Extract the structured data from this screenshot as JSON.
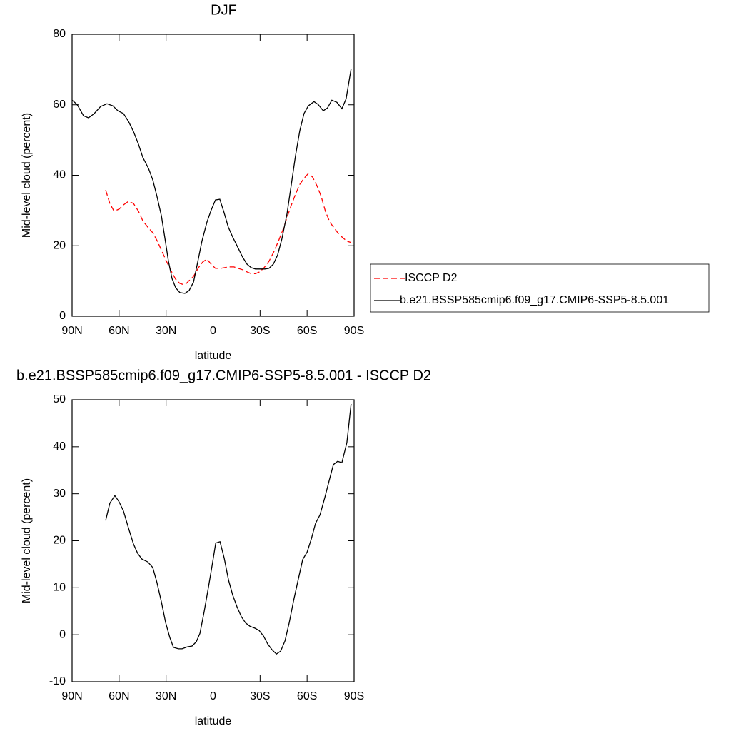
{
  "chart_data": [
    {
      "type": "line",
      "title": "DJF",
      "xlabel": "latitude",
      "ylabel": "Mid-level cloud (percent)",
      "xlim": [
        90,
        -90
      ],
      "xticks": [
        {
          "value": 90,
          "label": "90N"
        },
        {
          "value": 60,
          "label": "60N"
        },
        {
          "value": 30,
          "label": "30N"
        },
        0,
        {
          "value": -30,
          "label": "30S"
        },
        {
          "value": -60,
          "label": "60S"
        },
        {
          "value": -90,
          "label": "90S"
        }
      ],
      "ylim": [
        0,
        80
      ],
      "yticks": [
        0,
        20,
        40,
        60,
        80
      ],
      "legend": "outside-right",
      "series": [
        {
          "name": "ISCCP D2",
          "color": "#ff0000",
          "dash": true,
          "x": [
            68.6,
            65.9,
            63.2,
            60,
            57.2,
            54,
            50.8,
            47.6,
            44.9,
            41.7,
            38.5,
            35.8,
            33,
            30,
            26.7,
            23.9,
            21.2,
            18,
            15.3,
            12.5,
            9.3,
            6.6,
            3.9,
            1.3,
            -1.5,
            -4.7,
            -7.4,
            -10.2,
            -13.3,
            -16,
            -18.8,
            -21.6,
            -24.3,
            -27,
            -29.8,
            -32.6,
            -35.7,
            -38.9,
            -41.7,
            -44.4,
            -47.1,
            -49.8,
            -52.6,
            -55.3,
            -58,
            -60.8,
            -63.5,
            -66.3,
            -69,
            -71.7,
            -74.5,
            -77.2,
            -79.9,
            -82.7,
            -85.4,
            -88.1
          ],
          "values": [
            35.8,
            32,
            29.8,
            30.4,
            31.6,
            32.6,
            32,
            29.8,
            27.1,
            25.3,
            23.7,
            21.5,
            18.8,
            15.8,
            12.8,
            10.5,
            9.3,
            8.9,
            10.1,
            11.3,
            13.8,
            15.4,
            16.2,
            14.8,
            13.6,
            13.6,
            13.8,
            14,
            14,
            13.6,
            13.2,
            12.6,
            12.1,
            12.1,
            12.6,
            13.8,
            15.6,
            18.4,
            21.3,
            24.3,
            27.9,
            31.4,
            34.6,
            37.4,
            39.1,
            40.5,
            39.5,
            37,
            34,
            29.8,
            26.7,
            25.1,
            23.5,
            22.3,
            21.3,
            20.9
          ]
        },
        {
          "name": "b.e21.BSSP585cmip6.f09_g17.CMIP6-SSP5-8.5.001",
          "color": "#000000",
          "dash": false,
          "x": [
            90,
            86.8,
            82.7,
            79.5,
            75.9,
            71.8,
            67.7,
            64,
            60.8,
            57.2,
            54,
            50.8,
            47.6,
            44.9,
            41.2,
            38.5,
            35.8,
            33,
            30.8,
            28.5,
            26.2,
            23.9,
            21.2,
            18,
            15.3,
            12.5,
            9.8,
            7.1,
            3.9,
            1.3,
            -1.5,
            -4.3,
            -7,
            -9.7,
            -12.5,
            -15.7,
            -18.8,
            -21.6,
            -24.3,
            -27,
            -30.3,
            -33,
            -35.7,
            -38.5,
            -41.2,
            -43.9,
            -47.1,
            -49.8,
            -52.6,
            -55.3,
            -58,
            -60.8,
            -64.4,
            -67.1,
            -70.3,
            -73,
            -75.8,
            -79,
            -82.2,
            -84.9,
            -88.1
          ],
          "values": [
            61.3,
            60.1,
            56.9,
            56.3,
            57.5,
            59.5,
            60.3,
            59.7,
            58.3,
            57.5,
            55.3,
            52.4,
            48.8,
            45.1,
            41.9,
            38.7,
            34,
            28.5,
            22.3,
            15.6,
            10.7,
            8.1,
            6.7,
            6.5,
            7.3,
            9.7,
            15.4,
            21.3,
            26.7,
            30,
            33,
            33.2,
            29.4,
            25.3,
            22.5,
            19.6,
            16.8,
            14.8,
            13.8,
            13.4,
            13.4,
            13.4,
            13.6,
            14.8,
            17.4,
            21.9,
            28.9,
            37,
            45.5,
            52.6,
            57.5,
            59.7,
            60.9,
            60.1,
            58.3,
            59.1,
            61.3,
            60.7,
            58.9,
            61.7,
            70.2
          ]
        }
      ]
    },
    {
      "type": "line",
      "title": "b.e21.BSSP585cmip6.f09_g17.CMIP6-SSP5-8.5.001 - ISCCP D2",
      "xlabel": "latitude",
      "ylabel": "Mid-level cloud (percent)",
      "xlim": [
        90,
        -90
      ],
      "xticks": [
        {
          "value": 90,
          "label": "90N"
        },
        {
          "value": 60,
          "label": "60N"
        },
        {
          "value": 30,
          "label": "30N"
        },
        0,
        {
          "value": -30,
          "label": "30S"
        },
        {
          "value": -60,
          "label": "60S"
        },
        {
          "value": -90,
          "label": "90S"
        }
      ],
      "ylim": [
        -10,
        50
      ],
      "yticks": [
        -10,
        0,
        10,
        20,
        30,
        40,
        50
      ],
      "series": [
        {
          "color": "#000000",
          "dash": false,
          "x": [
            68.6,
            65.9,
            62.7,
            60,
            57.2,
            54,
            50.8,
            48.1,
            45.4,
            41.7,
            38.5,
            35.8,
            33,
            30.3,
            27.6,
            25.3,
            22.1,
            19.8,
            16.6,
            13.4,
            10.7,
            8.4,
            5.7,
            2.9,
            0.6,
            -1.7,
            -4.4,
            -7.1,
            -9.9,
            -12.6,
            -15.3,
            -18.1,
            -20.8,
            -23.5,
            -26.7,
            -29.4,
            -32.2,
            -34.9,
            -37.6,
            -40.4,
            -43.1,
            -45.9,
            -48.6,
            -51.4,
            -54.5,
            -57.2,
            -60,
            -62.7,
            -65.4,
            -68.2,
            -71.3,
            -74.1,
            -76.8,
            -79.5,
            -82.2,
            -85.4,
            -88.1
          ],
          "values": [
            24.3,
            28,
            29.6,
            28.3,
            26.3,
            22.7,
            19.3,
            17.3,
            16.1,
            15.5,
            14.3,
            11.1,
            7,
            2.6,
            -0.6,
            -2.7,
            -3,
            -3,
            -2.6,
            -2.4,
            -1.5,
            0.3,
            4.9,
            10.2,
            14.8,
            19.5,
            19.8,
            16.3,
            11.6,
            8.4,
            5.9,
            3.8,
            2.5,
            1.8,
            1.4,
            0.9,
            -0.3,
            -2,
            -3.2,
            -4.1,
            -3.5,
            -1.3,
            2.6,
            7.3,
            12,
            16,
            17.6,
            20.4,
            23.7,
            25.5,
            29.2,
            32.8,
            36.2,
            36.9,
            36.6,
            40.9,
            49.1
          ]
        }
      ]
    }
  ]
}
